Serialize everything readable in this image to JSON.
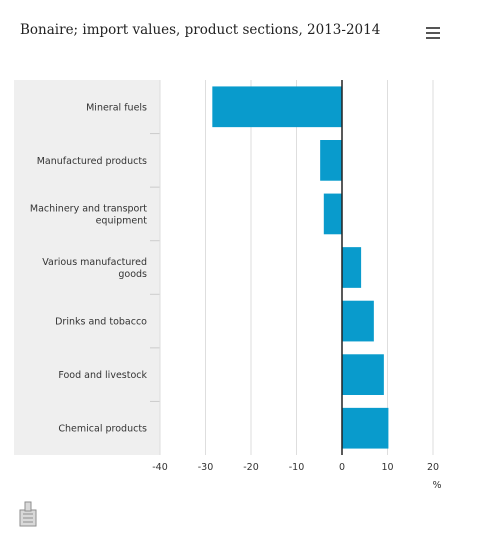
{
  "header": {
    "title": "Bonaire; import values, product sections, 2013-2014",
    "menu_icon": "hamburger-menu-icon"
  },
  "footer": {
    "logo_icon": "cbs-logo-icon"
  },
  "colors": {
    "bar": "#099bcc",
    "label_panel": "#efefef",
    "grid": "#dedede",
    "zero_line": "#222222"
  },
  "chart_data": {
    "type": "bar",
    "orientation": "horizontal",
    "title": "Bonaire; import values, product sections, 2013-2014",
    "categories": [
      [
        "Mineral fuels"
      ],
      [
        "Manufactured products"
      ],
      [
        "Machinery and transport",
        "equipment"
      ],
      [
        "Various manufactured",
        "goods"
      ],
      [
        "Drinks and tobacco"
      ],
      [
        "Food and livestock"
      ],
      [
        "Chemical products"
      ]
    ],
    "values": [
      -28.5,
      -4.8,
      -4,
      4.2,
      7,
      9.2,
      10.2
    ],
    "xlim": [
      -40,
      20
    ],
    "xticks": [
      -40,
      -30,
      -20,
      -10,
      0,
      10,
      20
    ],
    "xlabel": "%",
    "grid": true
  }
}
